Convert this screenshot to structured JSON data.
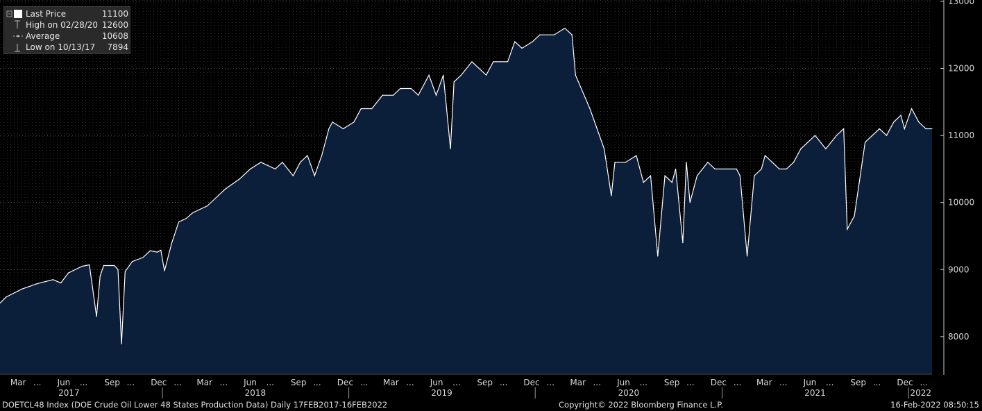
{
  "legend": {
    "rows": [
      {
        "label": "Last Price",
        "value": "11100",
        "icon": "filled-square-icon"
      },
      {
        "label": "High on 02/28/20",
        "value": "12600",
        "icon": "high-marker-icon"
      },
      {
        "label": "Average",
        "value": "10608",
        "icon": "average-line-icon"
      },
      {
        "label": "Low on 10/13/17",
        "value": "7894",
        "icon": "low-marker-icon"
      }
    ]
  },
  "footer": {
    "left": "DOETCL48 Index (DOE Crude Oil Lower 48 States Production Data) Daily 17FEB2017-16FEB2022",
    "center": "Copyright© 2022 Bloomberg Finance L.P.",
    "right": "16-Feb-2022 08:50:15"
  },
  "colors": {
    "background": "#000000",
    "fill": "#0b1e3a",
    "line": "#ffffff",
    "text": "#d8d8d8",
    "grid": "#7a7a7a"
  },
  "chart_data": {
    "type": "area",
    "y_axis": {
      "position": "right",
      "ticks": [
        8000,
        9000,
        10000,
        11000,
        12000,
        13000
      ],
      "range": [
        7450,
        13020
      ]
    },
    "x_axis": {
      "range": [
        "2017-02-17",
        "2022-02-16"
      ],
      "month_labels": [
        {
          "date": "2017-03-01",
          "label": "Mar"
        },
        {
          "date": "2017-04-15",
          "label": "..."
        },
        {
          "date": "2017-06-01",
          "label": "Jun"
        },
        {
          "date": "2017-07-15",
          "label": "..."
        },
        {
          "date": "2017-09-01",
          "label": "Sep"
        },
        {
          "date": "2017-10-15",
          "label": "..."
        },
        {
          "date": "2017-12-01",
          "label": "Dec"
        },
        {
          "date": "2018-01-15",
          "label": "..."
        },
        {
          "date": "2018-03-01",
          "label": "Mar"
        },
        {
          "date": "2018-04-15",
          "label": "..."
        },
        {
          "date": "2018-06-01",
          "label": "Jun"
        },
        {
          "date": "2018-07-15",
          "label": "..."
        },
        {
          "date": "2018-09-01",
          "label": "Sep"
        },
        {
          "date": "2018-10-15",
          "label": "..."
        },
        {
          "date": "2018-12-01",
          "label": "Dec"
        },
        {
          "date": "2019-01-15",
          "label": "..."
        },
        {
          "date": "2019-03-01",
          "label": "Mar"
        },
        {
          "date": "2019-04-15",
          "label": "..."
        },
        {
          "date": "2019-06-01",
          "label": "Jun"
        },
        {
          "date": "2019-07-15",
          "label": "..."
        },
        {
          "date": "2019-09-01",
          "label": "Sep"
        },
        {
          "date": "2019-10-15",
          "label": "..."
        },
        {
          "date": "2019-12-01",
          "label": "Dec"
        },
        {
          "date": "2020-01-15",
          "label": "..."
        },
        {
          "date": "2020-03-01",
          "label": "Mar"
        },
        {
          "date": "2020-04-15",
          "label": "..."
        },
        {
          "date": "2020-06-01",
          "label": "Jun"
        },
        {
          "date": "2020-07-15",
          "label": "..."
        },
        {
          "date": "2020-09-01",
          "label": "Sep"
        },
        {
          "date": "2020-10-15",
          "label": "..."
        },
        {
          "date": "2020-12-01",
          "label": "Dec"
        },
        {
          "date": "2021-01-15",
          "label": "..."
        },
        {
          "date": "2021-03-01",
          "label": "Mar"
        },
        {
          "date": "2021-04-15",
          "label": "..."
        },
        {
          "date": "2021-06-01",
          "label": "Jun"
        },
        {
          "date": "2021-07-15",
          "label": "..."
        },
        {
          "date": "2021-09-01",
          "label": "Sep"
        },
        {
          "date": "2021-10-15",
          "label": "..."
        },
        {
          "date": "2021-12-01",
          "label": "Dec"
        },
        {
          "date": "2022-01-15",
          "label": "..."
        }
      ],
      "years": [
        {
          "label": "2017",
          "date": "2017-07-02"
        },
        {
          "label": "2018",
          "date": "2018-07-02"
        },
        {
          "label": "2019",
          "date": "2019-07-02"
        },
        {
          "label": "2020",
          "date": "2020-07-02"
        },
        {
          "label": "2021",
          "date": "2021-07-02"
        },
        {
          "label": "2022",
          "date": "2022-01-25"
        }
      ]
    },
    "grid": true,
    "series": [
      {
        "values": [
          [
            "2017-02-17",
            8500
          ],
          [
            "2017-03-01",
            8590
          ],
          [
            "2017-04-01",
            8710
          ],
          [
            "2017-05-01",
            8790
          ],
          [
            "2017-06-01",
            8850
          ],
          [
            "2017-06-16",
            8800
          ],
          [
            "2017-07-01",
            8950
          ],
          [
            "2017-07-28",
            9050
          ],
          [
            "2017-08-11",
            9070
          ],
          [
            "2017-08-25",
            8300
          ],
          [
            "2017-09-01",
            8900
          ],
          [
            "2017-09-08",
            9060
          ],
          [
            "2017-09-29",
            9060
          ],
          [
            "2017-10-06",
            9000
          ],
          [
            "2017-10-13",
            7890
          ],
          [
            "2017-10-20",
            8970
          ],
          [
            "2017-11-03",
            9120
          ],
          [
            "2017-11-24",
            9180
          ],
          [
            "2017-12-08",
            9280
          ],
          [
            "2017-12-22",
            9260
          ],
          [
            "2017-12-29",
            9290
          ],
          [
            "2018-01-05",
            8980
          ],
          [
            "2018-01-19",
            9390
          ],
          [
            "2018-02-02",
            9710
          ],
          [
            "2018-02-16",
            9760
          ],
          [
            "2018-03-02",
            9850
          ],
          [
            "2018-03-30",
            9950
          ],
          [
            "2018-04-20",
            10100
          ],
          [
            "2018-05-04",
            10200
          ],
          [
            "2018-06-01",
            10350
          ],
          [
            "2018-06-22",
            10500
          ],
          [
            "2018-07-13",
            10600
          ],
          [
            "2018-08-10",
            10500
          ],
          [
            "2018-08-24",
            10600
          ],
          [
            "2018-09-14",
            10400
          ],
          [
            "2018-09-28",
            10600
          ],
          [
            "2018-10-12",
            10700
          ],
          [
            "2018-10-26",
            10400
          ],
          [
            "2018-11-09",
            10700
          ],
          [
            "2018-11-23",
            11100
          ],
          [
            "2018-11-30",
            11200
          ],
          [
            "2018-12-21",
            11100
          ],
          [
            "2019-01-11",
            11200
          ],
          [
            "2019-01-25",
            11400
          ],
          [
            "2019-02-15",
            11400
          ],
          [
            "2019-03-08",
            11600
          ],
          [
            "2019-03-29",
            11600
          ],
          [
            "2019-04-12",
            11700
          ],
          [
            "2019-05-03",
            11700
          ],
          [
            "2019-05-17",
            11600
          ],
          [
            "2019-06-07",
            11900
          ],
          [
            "2019-06-21",
            11600
          ],
          [
            "2019-07-05",
            11900
          ],
          [
            "2019-07-19",
            10800
          ],
          [
            "2019-07-26",
            11800
          ],
          [
            "2019-08-09",
            11900
          ],
          [
            "2019-08-30",
            12100
          ],
          [
            "2019-09-27",
            11900
          ],
          [
            "2019-10-11",
            12100
          ],
          [
            "2019-11-08",
            12100
          ],
          [
            "2019-11-22",
            12400
          ],
          [
            "2019-12-06",
            12300
          ],
          [
            "2019-12-27",
            12400
          ],
          [
            "2020-01-10",
            12500
          ],
          [
            "2020-02-07",
            12500
          ],
          [
            "2020-02-28",
            12600
          ],
          [
            "2020-03-13",
            12500
          ],
          [
            "2020-03-20",
            11900
          ],
          [
            "2020-04-17",
            11400
          ],
          [
            "2020-05-15",
            10800
          ],
          [
            "2020-05-29",
            10100
          ],
          [
            "2020-06-05",
            10600
          ],
          [
            "2020-06-26",
            10600
          ],
          [
            "2020-07-17",
            10700
          ],
          [
            "2020-07-31",
            10300
          ],
          [
            "2020-08-14",
            10400
          ],
          [
            "2020-08-28",
            9200
          ],
          [
            "2020-09-11",
            10400
          ],
          [
            "2020-09-25",
            10300
          ],
          [
            "2020-10-02",
            10500
          ],
          [
            "2020-10-16",
            9400
          ],
          [
            "2020-10-23",
            10600
          ],
          [
            "2020-10-30",
            10000
          ],
          [
            "2020-11-13",
            10400
          ],
          [
            "2020-12-04",
            10600
          ],
          [
            "2020-12-18",
            10500
          ],
          [
            "2021-01-29",
            10500
          ],
          [
            "2021-02-05",
            10400
          ],
          [
            "2021-02-19",
            9200
          ],
          [
            "2021-03-05",
            10400
          ],
          [
            "2021-03-19",
            10500
          ],
          [
            "2021-03-26",
            10700
          ],
          [
            "2021-04-09",
            10600
          ],
          [
            "2021-04-23",
            10500
          ],
          [
            "2021-05-07",
            10500
          ],
          [
            "2021-05-21",
            10600
          ],
          [
            "2021-06-04",
            10800
          ],
          [
            "2021-07-02",
            11000
          ],
          [
            "2021-07-23",
            10800
          ],
          [
            "2021-08-13",
            11000
          ],
          [
            "2021-08-27",
            11100
          ],
          [
            "2021-09-03",
            9600
          ],
          [
            "2021-09-17",
            9800
          ],
          [
            "2021-10-08",
            10900
          ],
          [
            "2021-11-05",
            11100
          ],
          [
            "2021-11-19",
            11000
          ],
          [
            "2021-12-03",
            11200
          ],
          [
            "2021-12-17",
            11300
          ],
          [
            "2021-12-24",
            11100
          ],
          [
            "2022-01-07",
            11400
          ],
          [
            "2022-01-21",
            11200
          ],
          [
            "2022-02-04",
            11100
          ],
          [
            "2022-02-16",
            11100
          ]
        ]
      }
    ]
  }
}
